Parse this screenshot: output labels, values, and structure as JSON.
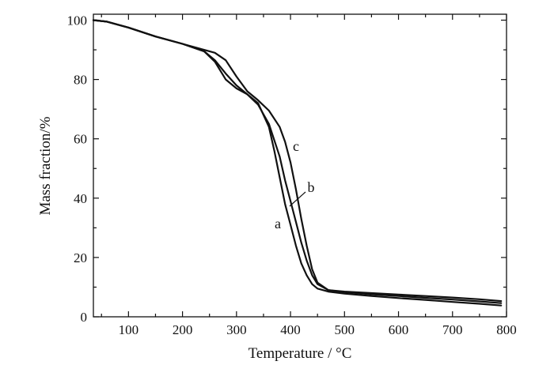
{
  "chart_data": {
    "type": "line",
    "title": "",
    "xlabel": "Temperature / °C",
    "ylabel": "Mass fraction/%",
    "xlim": [
      35,
      800
    ],
    "ylim": [
      0,
      102
    ],
    "xticks": [
      100,
      200,
      300,
      400,
      500,
      600,
      700,
      800
    ],
    "yticks": [
      0,
      20,
      40,
      60,
      80,
      100
    ],
    "grid": false,
    "legend": "none",
    "series": [
      {
        "name": "a",
        "x": [
          35,
          60,
          100,
          150,
          200,
          240,
          260,
          280,
          300,
          320,
          340,
          360,
          370,
          380,
          390,
          400,
          410,
          420,
          430,
          440,
          450,
          470,
          500,
          550,
          600,
          650,
          700,
          750,
          790
        ],
        "y": [
          100,
          99.5,
          97.5,
          94.5,
          92,
          89.5,
          86.5,
          82,
          78,
          75,
          72,
          64,
          56,
          47,
          38,
          31,
          24,
          18,
          14,
          11,
          9.5,
          8.5,
          7.8,
          7.0,
          6.3,
          5.7,
          5.0,
          4.4,
          3.8
        ]
      },
      {
        "name": "b",
        "x": [
          35,
          60,
          100,
          150,
          200,
          240,
          260,
          280,
          300,
          320,
          340,
          360,
          380,
          390,
          400,
          410,
          420,
          430,
          440,
          450,
          470,
          500,
          550,
          600,
          650,
          700,
          750,
          790
        ],
        "y": [
          100,
          99.5,
          97.5,
          94.5,
          92,
          89.5,
          86,
          80,
          77,
          75,
          71.5,
          65,
          54,
          46,
          39,
          32,
          25,
          19,
          14,
          11,
          9,
          8.3,
          7.6,
          7.0,
          6.4,
          5.8,
          5.2,
          4.6
        ]
      },
      {
        "name": "c",
        "x": [
          35,
          60,
          100,
          150,
          200,
          240,
          260,
          280,
          300,
          320,
          340,
          360,
          380,
          390,
          400,
          410,
          420,
          430,
          440,
          450,
          470,
          500,
          550,
          600,
          650,
          700,
          750,
          790
        ],
        "y": [
          100,
          99.5,
          97.5,
          94.5,
          92,
          90,
          89,
          86.5,
          81,
          76,
          73,
          69.5,
          64,
          59,
          52,
          43,
          33,
          24,
          16,
          11.5,
          9,
          8.5,
          8,
          7.5,
          7,
          6.5,
          5.9,
          5.3
        ]
      }
    ],
    "annotations": [
      "a",
      "b",
      "c"
    ]
  }
}
